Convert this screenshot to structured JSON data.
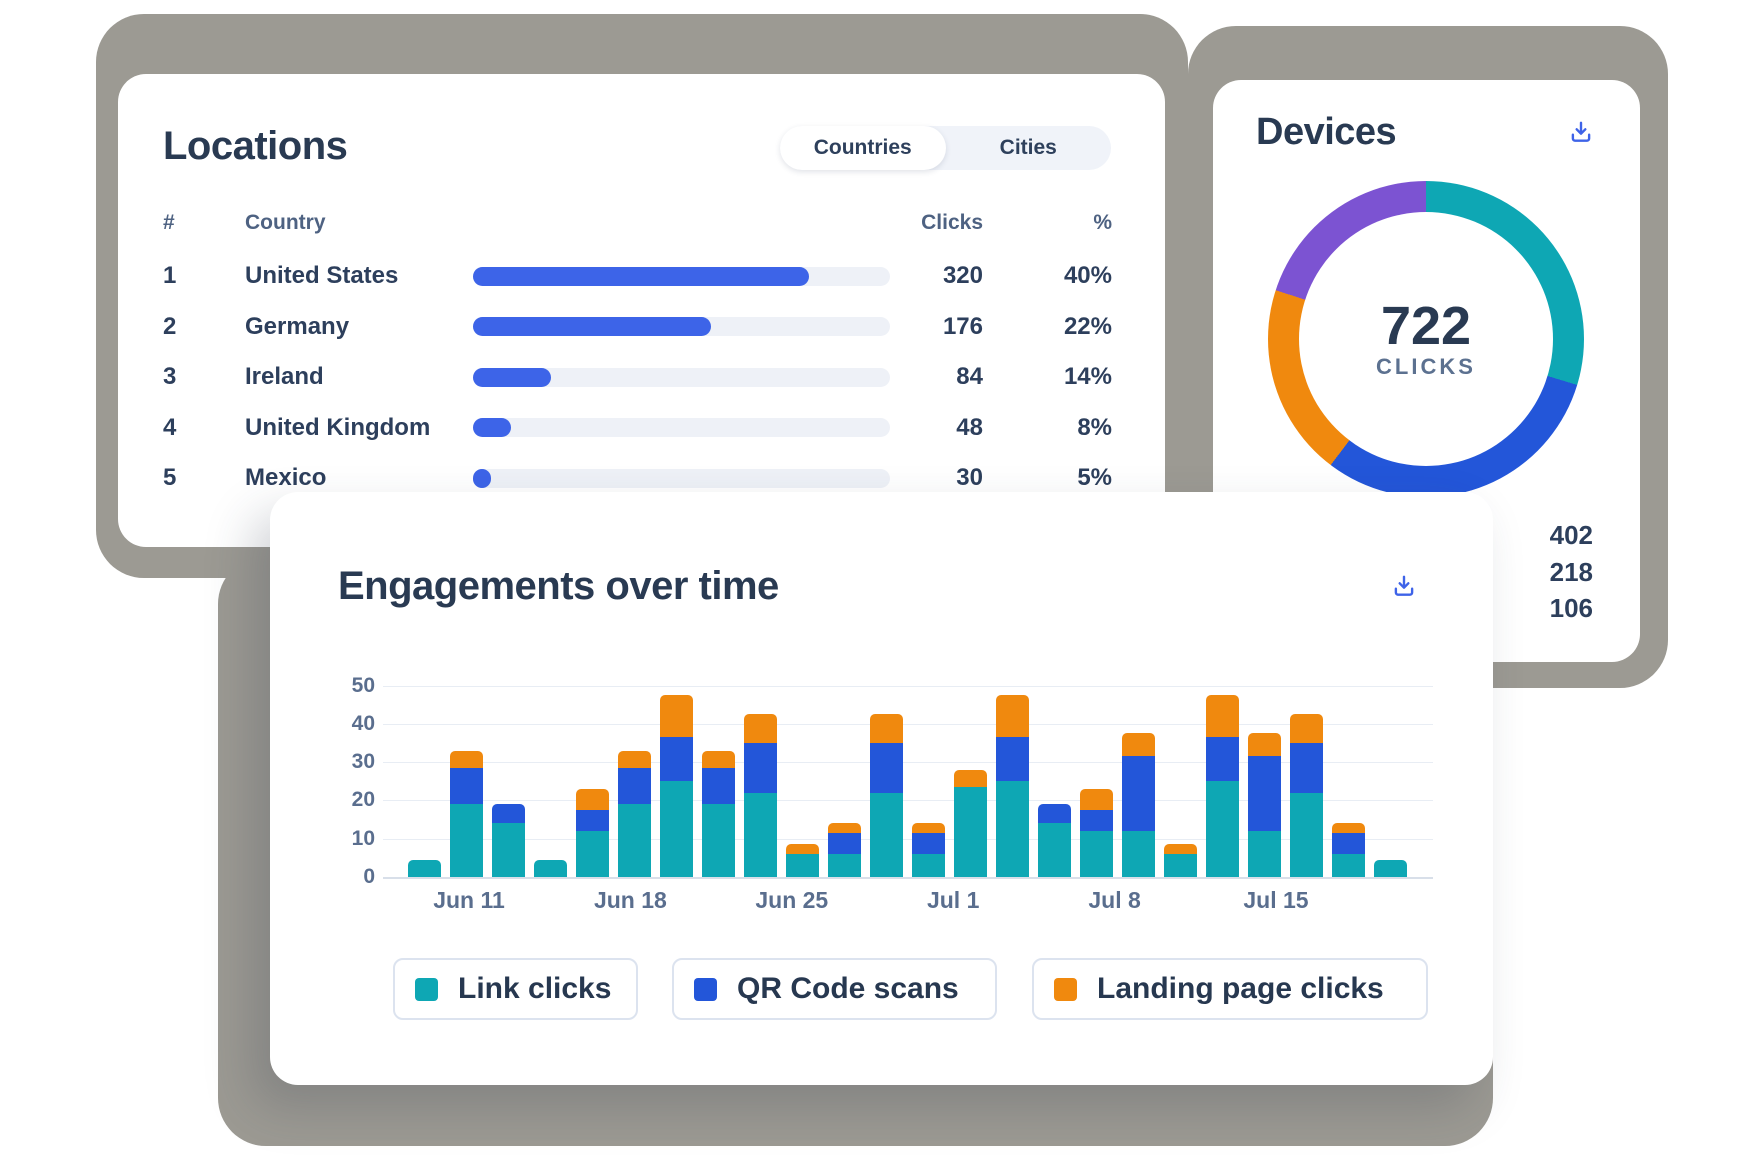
{
  "colors": {
    "teal": "#0ea7b4",
    "blue_chart": "#2356d9",
    "blue_bar": "#3d64e8",
    "orange": "#f0890e",
    "purple": "#7c53d2",
    "icon_blue": "#3e63e8"
  },
  "locations_card": {
    "title": "Locations",
    "tabs": [
      {
        "label": "Countries",
        "active": true
      },
      {
        "label": "Cities",
        "active": false
      }
    ],
    "table": {
      "headers": {
        "rank": "#",
        "country": "Country",
        "clicks": "Clicks",
        "percent": "%"
      },
      "rows": [
        {
          "rank": "1",
          "country": "United States",
          "clicks": "320",
          "percent": "40%",
          "bar_pct": 80.5
        },
        {
          "rank": "2",
          "country": "Germany",
          "clicks": "176",
          "percent": "22%",
          "bar_pct": 57.0
        },
        {
          "rank": "3",
          "country": "Ireland",
          "clicks": "84",
          "percent": "14%",
          "bar_pct": 18.8
        },
        {
          "rank": "4",
          "country": "United Kingdom",
          "clicks": "48",
          "percent": "8%",
          "bar_pct": 9.1
        },
        {
          "rank": "5",
          "country": "Mexico",
          "clicks": "30",
          "percent": "5%",
          "bar_pct": 4.3
        }
      ]
    }
  },
  "devices_card": {
    "title": "Devices",
    "donut": {
      "center_value": "722",
      "center_label": "CLICKS",
      "segments": [
        {
          "color_key": "teal",
          "pct": 29.7
        },
        {
          "color_key": "blue_chart",
          "pct": 30.6
        },
        {
          "color_key": "orange",
          "pct": 19.7
        },
        {
          "color_key": "purple",
          "pct": 20.0
        }
      ],
      "legend_values": [
        "402",
        "218",
        "106"
      ]
    }
  },
  "engagements_card": {
    "title": "Engagements over time",
    "legend": [
      {
        "label": "Link clicks",
        "color_key": "teal"
      },
      {
        "label": "QR Code scans",
        "color_key": "blue_chart"
      },
      {
        "label": "Landing page clicks",
        "color_key": "orange"
      }
    ]
  },
  "chart_data": [
    {
      "type": "bar",
      "title": "Engagements over time",
      "stacked": true,
      "x_tick_labels": [
        "Jun 11",
        "Jun 18",
        "Jun 25",
        "Jul 1",
        "Jul 8",
        "Jul 15"
      ],
      "y_ticks": [
        0,
        10,
        20,
        30,
        40,
        50
      ],
      "ylim": [
        0,
        50
      ],
      "grid": true,
      "legend_position": "bottom",
      "series": [
        {
          "name": "Link clicks",
          "values": [
            4.5,
            19,
            14,
            4.5,
            12,
            19,
            25,
            19,
            22,
            6,
            6,
            22,
            6,
            23.5,
            25,
            14,
            12,
            12,
            6,
            25,
            12,
            22,
            6,
            4.5
          ]
        },
        {
          "name": "QR Code scans",
          "values": [
            0,
            9.5,
            5,
            0,
            5.5,
            9.5,
            11.5,
            9.5,
            13,
            0,
            5.5,
            13,
            5.5,
            0,
            11.5,
            5,
            5.5,
            19.5,
            0,
            11.5,
            19.5,
            13,
            5.5,
            0
          ]
        },
        {
          "name": "Landing page clicks",
          "values": [
            0,
            4.5,
            0,
            0,
            5.5,
            4.5,
            11,
            4.5,
            7.5,
            2.5,
            2.5,
            7.5,
            2.5,
            4.5,
            11,
            0,
            5.5,
            6,
            2.5,
            11,
            6,
            7.5,
            2.5,
            0
          ]
        }
      ]
    },
    {
      "type": "bar",
      "title": "Locations (Countries)",
      "orientation": "horizontal",
      "categories": [
        "United States",
        "Germany",
        "Ireland",
        "United Kingdom",
        "Mexico"
      ],
      "values": [
        320,
        176,
        84,
        48,
        30
      ],
      "percents": [
        40,
        22,
        14,
        8,
        5
      ]
    },
    {
      "type": "pie",
      "title": "Devices",
      "center_total": 722,
      "center_unit": "CLICKS",
      "visible_legend_values": [
        402,
        218,
        106
      ],
      "segment_pcts": [
        29.7,
        30.6,
        19.7,
        20.0
      ]
    }
  ]
}
